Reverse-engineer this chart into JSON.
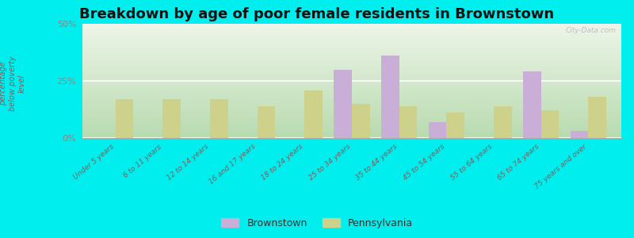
{
  "title": "Breakdown by age of poor female residents in Brownstown",
  "ylabel": "percentage\nbelow poverty\nlevel",
  "categories": [
    "Under 5 years",
    "6 to 11 years",
    "12 to 14 years",
    "16 and 17 years",
    "18 to 24 years",
    "25 to 34 years",
    "35 to 44 years",
    "45 to 54 years",
    "55 to 64 years",
    "65 to 74 years",
    "75 years and over"
  ],
  "brownstown": [
    0,
    0,
    0,
    0,
    0,
    30,
    36,
    7,
    0,
    29,
    3
  ],
  "pennsylvania": [
    17,
    17,
    17,
    14,
    21,
    15,
    14,
    11,
    14,
    12,
    18
  ],
  "brownstown_color": "#c9aed8",
  "pennsylvania_color": "#cdd18a",
  "grad_bottom": "#b8dbb0",
  "grad_top": "#eef5e8",
  "outer_background": "#00eeee",
  "ylim": [
    0,
    50
  ],
  "yticks": [
    0,
    25,
    50
  ],
  "ytick_labels": [
    "0%",
    "25%",
    "50%"
  ],
  "bar_width": 0.38,
  "title_fontsize": 13,
  "legend_labels": [
    "Brownstown",
    "Pennsylvania"
  ],
  "tick_color": "#7a6060",
  "ylabel_color": "#7a6060"
}
